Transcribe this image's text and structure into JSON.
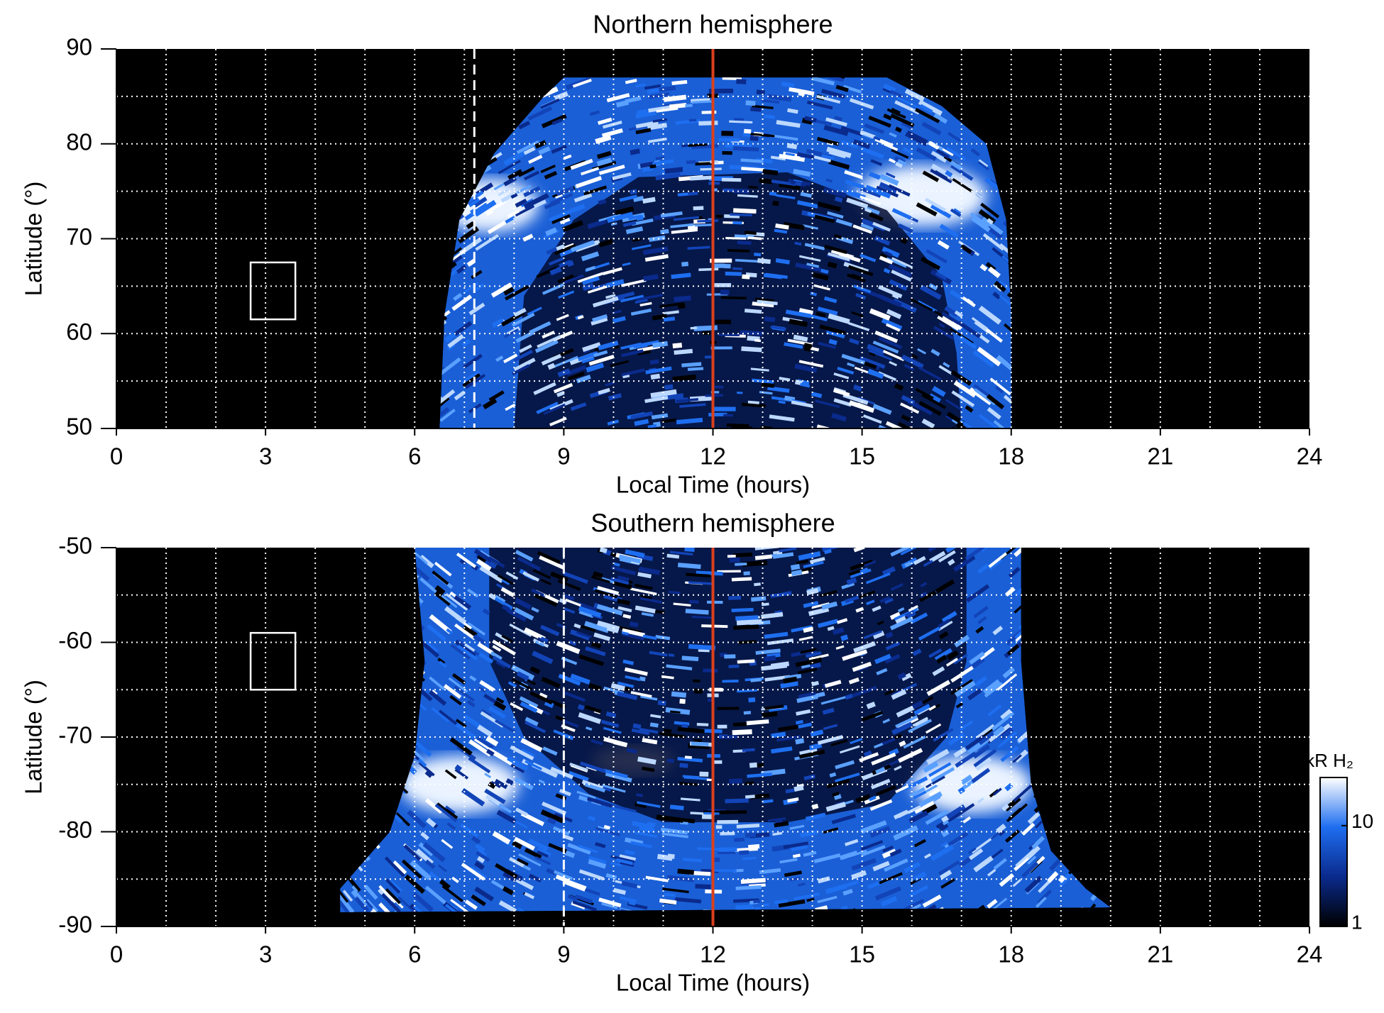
{
  "chart_data": [
    {
      "type": "heatmap",
      "title": "Northern hemisphere",
      "x_label": "Local Time (hours)",
      "y_label": "Latitude (°)",
      "xlim": [
        0,
        24
      ],
      "ylim": [
        50,
        90
      ],
      "xticks": [
        0,
        3,
        6,
        9,
        12,
        15,
        18,
        21,
        24
      ],
      "yticks": [
        50,
        60,
        70,
        80,
        90
      ],
      "grid": true,
      "grid_x_step": 1,
      "grid_y_step": 5,
      "reference_lines": [
        {
          "x": 12,
          "color": "#d9401c",
          "style": "solid"
        },
        {
          "x": 7.2,
          "color": "#ffffff",
          "style": "dashed"
        }
      ],
      "box": {
        "x": [
          2.7,
          3.6
        ],
        "y": [
          61.5,
          67.5
        ],
        "color": "#ffffff"
      }
    },
    {
      "type": "heatmap",
      "title": "Southern hemisphere",
      "x_label": "Local Time (hours)",
      "y_label": "Latitude (°)",
      "xlim": [
        0,
        24
      ],
      "ylim": [
        -90,
        -50
      ],
      "xticks": [
        0,
        3,
        6,
        9,
        12,
        15,
        18,
        21,
        24
      ],
      "yticks": [
        -90,
        -80,
        -70,
        -60,
        -50
      ],
      "grid": true,
      "grid_x_step": 1,
      "grid_y_step": 5,
      "reference_lines": [
        {
          "x": 12,
          "color": "#d9401c",
          "style": "solid"
        },
        {
          "x": 9,
          "color": "#ffffff",
          "style": "dashed"
        }
      ],
      "box": {
        "x": [
          2.7,
          3.6
        ],
        "y": [
          -65,
          -59
        ],
        "color": "#ffffff"
      },
      "colorbar": {
        "label": "kR H₂",
        "scale": "log",
        "lim": [
          1,
          30
        ],
        "ticks": [
          1,
          10
        ],
        "colors": [
          "#000000",
          "#0a2a8c",
          "#1e6ef0",
          "#ffffff"
        ]
      }
    }
  ]
}
